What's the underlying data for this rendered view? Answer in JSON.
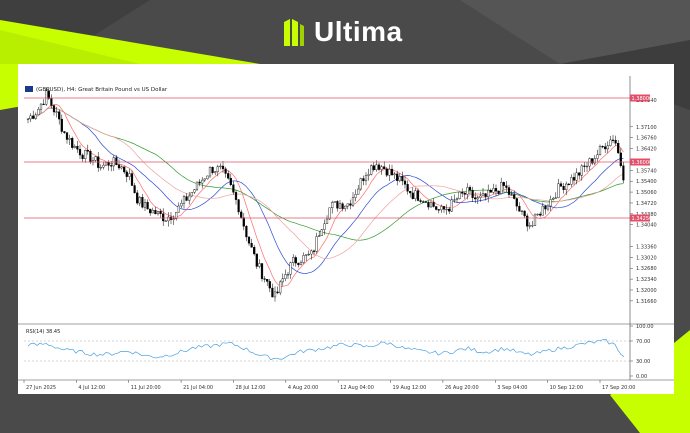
{
  "brand": {
    "name": "Ultima",
    "accent": "#c8ff00"
  },
  "chart_data": {
    "type": "candlestick",
    "title": "(GBPUSD), H4:  Great Britain Pound vs US Dollar",
    "y_axis": {
      "range": [
        1.31,
        1.385
      ],
      "ticks": [
        "1.37940",
        "1.37100",
        "1.36760",
        "1.36420",
        "1.35740",
        "1.35400",
        "1.35060",
        "1.34720",
        "1.34380",
        "1.34040",
        "1.33360",
        "1.33020",
        "1.32680",
        "1.32340",
        "1.32000",
        "1.31660"
      ],
      "highlighted": [
        "1.38000",
        "1.36000",
        "1.34250"
      ]
    },
    "x_axis": {
      "ticks": [
        "27 Jun 2025",
        "4 Jul 12:00",
        "11 Jul 20:00",
        "21 Jul 04:00",
        "28 Jul 12:00",
        "4 Aug 20:00",
        "12 Aug 04:00",
        "19 Aug 12:00",
        "26 Aug 20:00",
        "3 Sep 04:00",
        "10 Sep 12:00",
        "17 Sep 20:00"
      ]
    },
    "levels": [
      {
        "value": 1.38,
        "color": "#e0506a"
      },
      {
        "value": 1.36,
        "color": "#e0506a"
      },
      {
        "value": 1.3425,
        "color": "#e0506a"
      }
    ],
    "price_path": [
      1.3735,
      1.376,
      1.381,
      1.3755,
      1.369,
      1.365,
      1.3625,
      1.361,
      1.3585,
      1.36,
      1.359,
      1.356,
      1.348,
      1.3455,
      1.344,
      1.3425,
      1.344,
      1.3475,
      1.351,
      1.3545,
      1.358,
      1.3575,
      1.353,
      1.346,
      1.336,
      1.328,
      1.323,
      1.3175,
      1.3245,
      1.329,
      1.33,
      1.331,
      1.34,
      1.346,
      1.347,
      1.347,
      1.352,
      1.3575,
      1.3595,
      1.358,
      1.3555,
      1.353,
      1.35,
      1.349,
      1.347,
      1.3445,
      1.346,
      1.349,
      1.3505,
      1.348,
      1.349,
      1.351,
      1.3525,
      1.348,
      1.343,
      1.34,
      1.345,
      1.348,
      1.352,
      1.354,
      1.356,
      1.359,
      1.362,
      1.3655,
      1.368,
      1.356
    ],
    "moving_averages": [
      {
        "name": "MA fast",
        "color": "#ff6b6b"
      },
      {
        "name": "MA mid",
        "color": "#2a4bd7"
      },
      {
        "name": "MA slow",
        "color": "#2e9a2e"
      },
      {
        "name": "MA extra",
        "color": "#f0a0a0"
      }
    ],
    "rsi": {
      "label": "RSI(14) 38.45",
      "ticks": [
        "100.00",
        "70.00",
        "30.00",
        "0.00"
      ],
      "range": [
        0,
        100
      ],
      "levels": [
        70,
        30
      ],
      "color": "#4aa0e0",
      "values": [
        63,
        62,
        65,
        58,
        52,
        50,
        47,
        44,
        43,
        44,
        48,
        50,
        45,
        40,
        38,
        41,
        45,
        50,
        56,
        58,
        60,
        63,
        65,
        60,
        52,
        44,
        38,
        35,
        37,
        45,
        50,
        52,
        55,
        58,
        62,
        63,
        61,
        58,
        63,
        67,
        62,
        55,
        52,
        49,
        47,
        45,
        48,
        52,
        55,
        50,
        48,
        52,
        55,
        50,
        44,
        43,
        47,
        52,
        55,
        58,
        62,
        66,
        68,
        70,
        62,
        38
      ]
    }
  }
}
